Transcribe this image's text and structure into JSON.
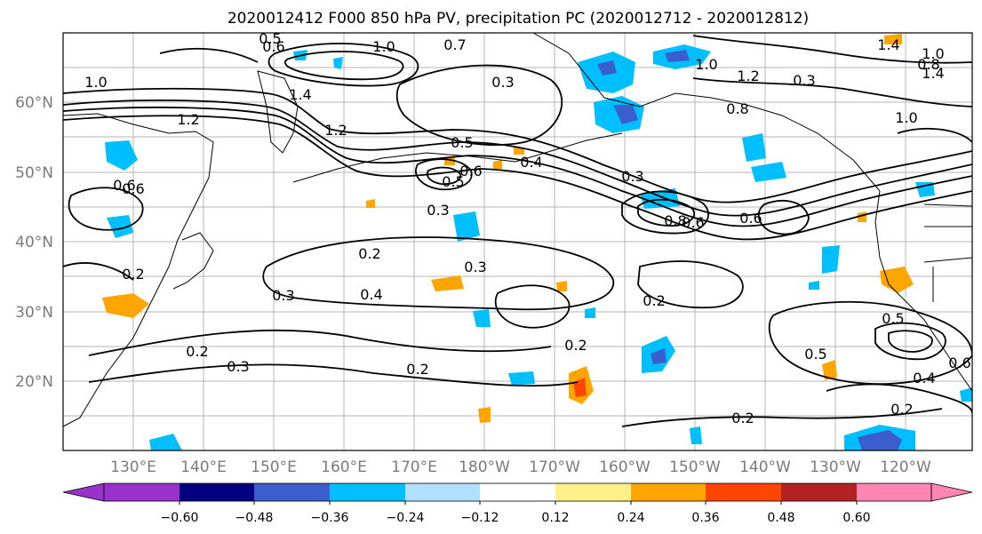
{
  "title": "2020012412 F000 850 hPa PV, precipitation PC (2020012712 - 2020012812)",
  "map": {
    "lat_labels": [
      "60°N",
      "50°N",
      "40°N",
      "30°N",
      "20°N"
    ],
    "lon_labels": [
      "130°E",
      "140°E",
      "150°E",
      "160°E",
      "170°E",
      "180°W",
      "170°W",
      "160°W",
      "150°W",
      "140°W",
      "130°W",
      "120°W"
    ],
    "gridlines": true,
    "contour_color": "#000000",
    "contour_labels": [
      "0.6",
      "0.5",
      "1.0",
      "0.7",
      "0.3",
      "1.4",
      "1.2",
      "1.2",
      "1.0",
      "1.0",
      "0.8",
      "1.0",
      "0.5",
      "0.6",
      "0.4",
      "0.5",
      "0.6",
      "0.3",
      "0.2",
      "0.4",
      "0.3",
      "0.3",
      "0.2",
      "0.2",
      "0.2",
      "0.3",
      "0.2",
      "0.2",
      "0.5",
      "0.5",
      "0.4",
      "0.2",
      "1.4",
      "1.4",
      "1.2",
      "0.3",
      "0.8",
      "0.6",
      "1.0",
      "0.6",
      "0.2",
      "0.8",
      "0.6",
      "0.3",
      "0.6"
    ]
  },
  "colorbar": {
    "colors": [
      "#9932cc",
      "#000080",
      "#3a5fcd",
      "#00bfff",
      "#b0e2ff",
      "#ffffff",
      "#fff08a",
      "#ffa500",
      "#ff4500",
      "#b22222",
      "#ff85b3"
    ],
    "tick_labels": [
      "−0.60",
      "−0.48",
      "−0.36",
      "−0.24",
      "−0.12",
      "0.12",
      "0.24",
      "0.36",
      "0.48",
      "0.60"
    ]
  }
}
